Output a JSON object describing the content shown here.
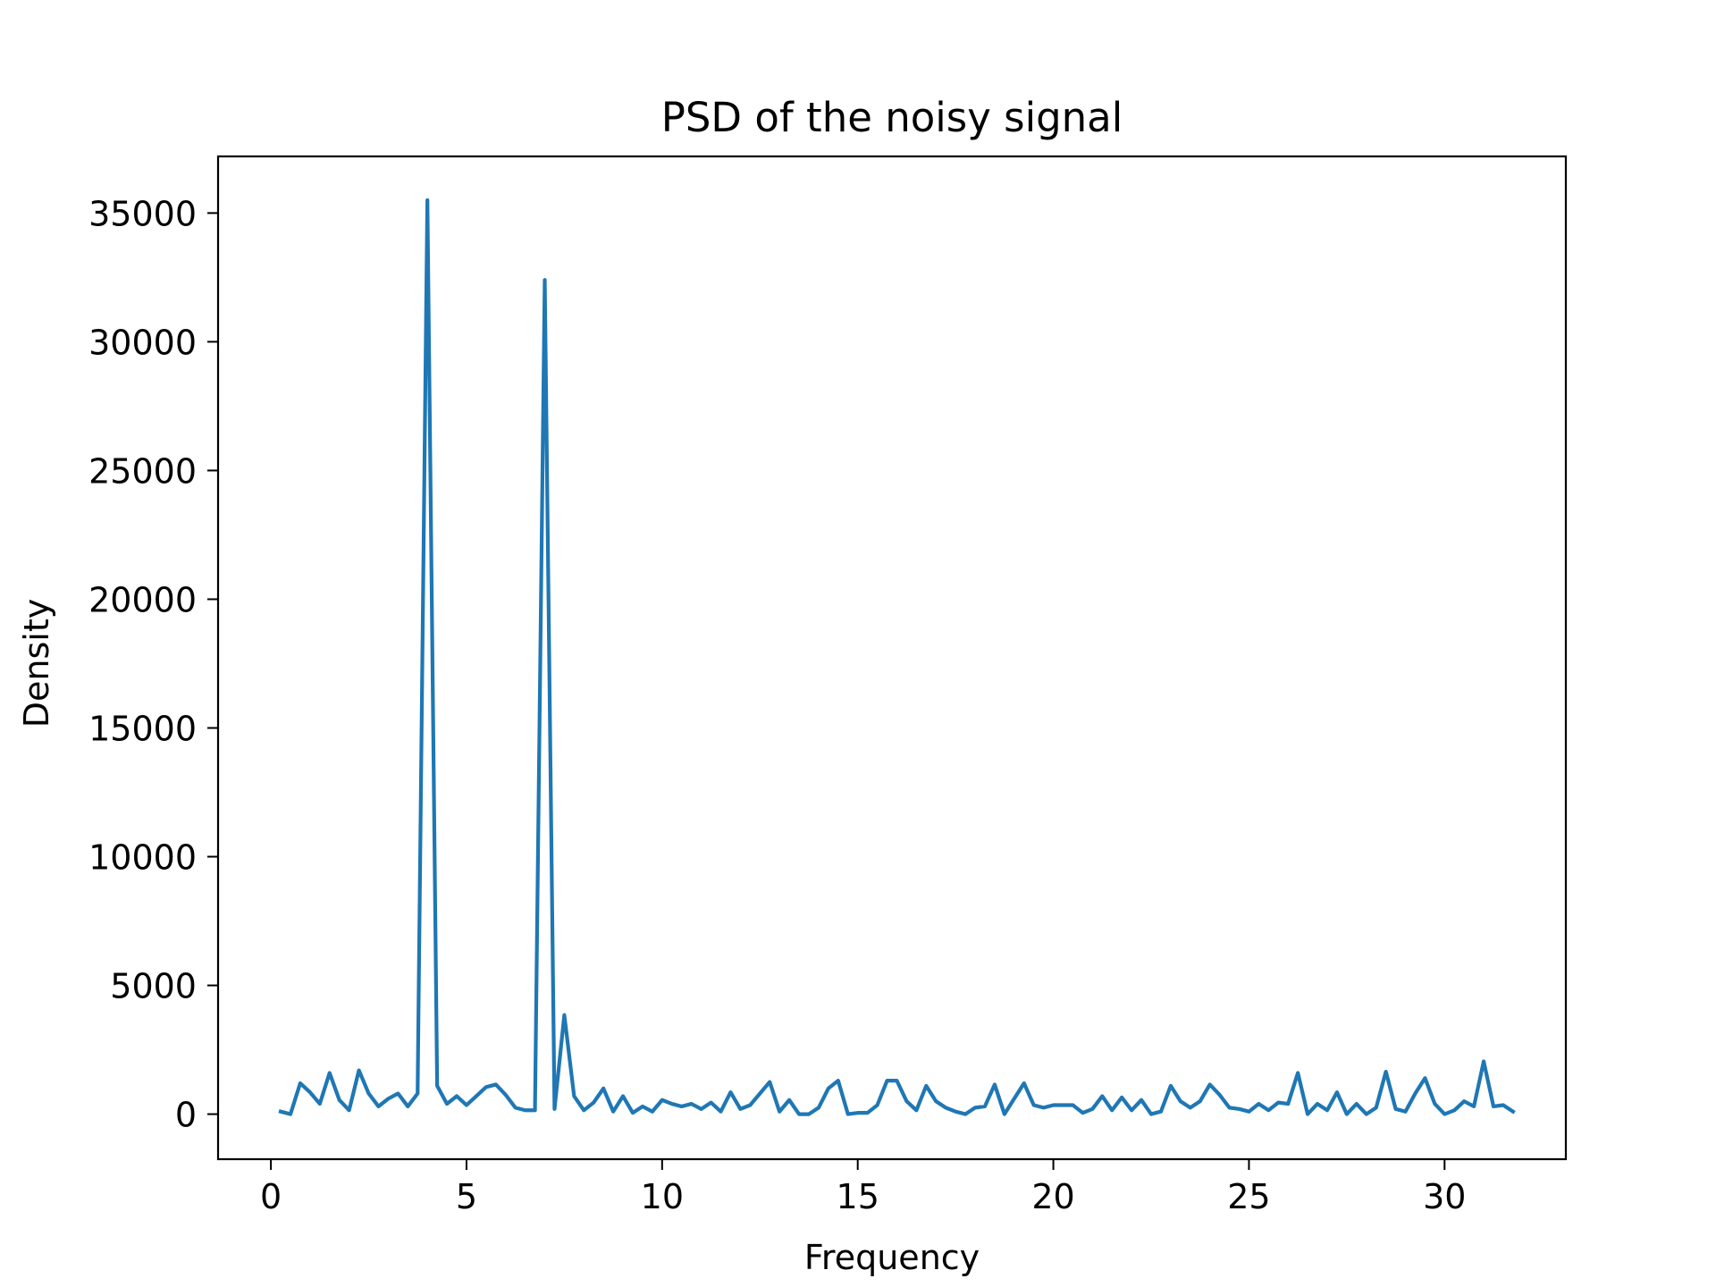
{
  "chart_data": {
    "type": "line",
    "title": "PSD of the noisy signal",
    "xlabel": "Frequency",
    "ylabel": "Density",
    "xlim": [
      -1.35,
      33.1
    ],
    "ylim": [
      -1750,
      37200
    ],
    "xticks": [
      0,
      5,
      10,
      15,
      20,
      25,
      30
    ],
    "xtick_labels": [
      "0",
      "5",
      "10",
      "15",
      "20",
      "25",
      "30"
    ],
    "yticks": [
      0,
      5000,
      10000,
      15000,
      20000,
      25000,
      30000,
      35000
    ],
    "ytick_labels": [
      "0",
      "5000",
      "10000",
      "15000",
      "20000",
      "25000",
      "30000",
      "35000"
    ],
    "grid": false,
    "series": [
      {
        "color": "#1f77b4",
        "x": [
          0.25,
          0.5,
          0.75,
          1.0,
          1.25,
          1.5,
          1.75,
          2.0,
          2.25,
          2.5,
          2.75,
          3.0,
          3.25,
          3.5,
          3.75,
          4.0,
          4.25,
          4.5,
          4.75,
          5.0,
          5.25,
          5.5,
          5.75,
          6.0,
          6.25,
          6.5,
          6.75,
          7.0,
          7.25,
          7.5,
          7.75,
          8.0,
          8.25,
          8.5,
          8.75,
          9.0,
          9.25,
          9.5,
          9.75,
          10.0,
          10.25,
          10.5,
          10.75,
          11.0,
          11.25,
          11.5,
          11.75,
          12.0,
          12.25,
          12.5,
          12.75,
          13.0,
          13.25,
          13.5,
          13.75,
          14.0,
          14.25,
          14.5,
          14.75,
          15.0,
          15.25,
          15.5,
          15.75,
          16.0,
          16.25,
          16.5,
          16.75,
          17.0,
          17.25,
          17.5,
          17.75,
          18.0,
          18.25,
          18.5,
          18.75,
          19.0,
          19.25,
          19.5,
          19.75,
          20.0,
          20.25,
          20.5,
          20.75,
          21.0,
          21.25,
          21.5,
          21.75,
          22.0,
          22.25,
          22.5,
          22.75,
          23.0,
          23.25,
          23.5,
          23.75,
          24.0,
          24.25,
          24.5,
          24.75,
          25.0,
          25.25,
          25.5,
          25.75,
          26.0,
          26.25,
          26.5,
          26.75,
          27.0,
          27.25,
          27.5,
          27.75,
          28.0,
          28.25,
          28.5,
          28.75,
          29.0,
          29.25,
          29.5,
          29.75,
          30.0,
          30.25,
          30.5,
          30.75,
          31.0,
          31.25,
          31.5,
          31.75
        ],
        "y": [
          100,
          0,
          1200,
          850,
          400,
          1600,
          550,
          150,
          1700,
          800,
          300,
          600,
          800,
          300,
          800,
          35500,
          1100,
          400,
          700,
          350,
          700,
          1050,
          1150,
          750,
          250,
          150,
          150,
          32400,
          200,
          3850,
          700,
          150,
          450,
          1000,
          100,
          700,
          50,
          300,
          100,
          550,
          400,
          300,
          400,
          200,
          450,
          100,
          850,
          200,
          350,
          800,
          1250,
          100,
          550,
          0,
          0,
          250,
          1000,
          1300,
          0,
          50,
          50,
          350,
          1300,
          1300,
          500,
          150,
          1100,
          500,
          250,
          100,
          0,
          250,
          300,
          1150,
          0,
          600,
          1200,
          350,
          250,
          350,
          350,
          350,
          50,
          200,
          700,
          150,
          650,
          150,
          550,
          0,
          100,
          1100,
          500,
          250,
          500,
          1150,
          750,
          250,
          200,
          100,
          400,
          150,
          450,
          400,
          1600,
          0,
          400,
          150,
          850,
          0,
          400,
          0,
          250,
          1650,
          200,
          100,
          800,
          1400,
          400,
          0,
          150,
          500,
          300,
          2050,
          300,
          350,
          100
        ]
      }
    ]
  }
}
